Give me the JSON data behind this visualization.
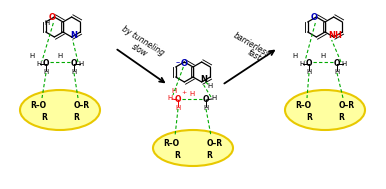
{
  "bg_color": "#ffffff",
  "yellow_fill": "#FFFFA0",
  "yellow_stroke": "#E8C800",
  "red_color": "#EE0000",
  "blue_color": "#0000BB",
  "green_color": "#00AA00",
  "dark_color": "#000000",
  "arrow1_text1": "by tunneling",
  "arrow1_text2": "slow",
  "arrow2_text1": "barrierless",
  "arrow2_text2": "fast",
  "fig_width": 3.86,
  "fig_height": 1.89,
  "dpi": 100
}
